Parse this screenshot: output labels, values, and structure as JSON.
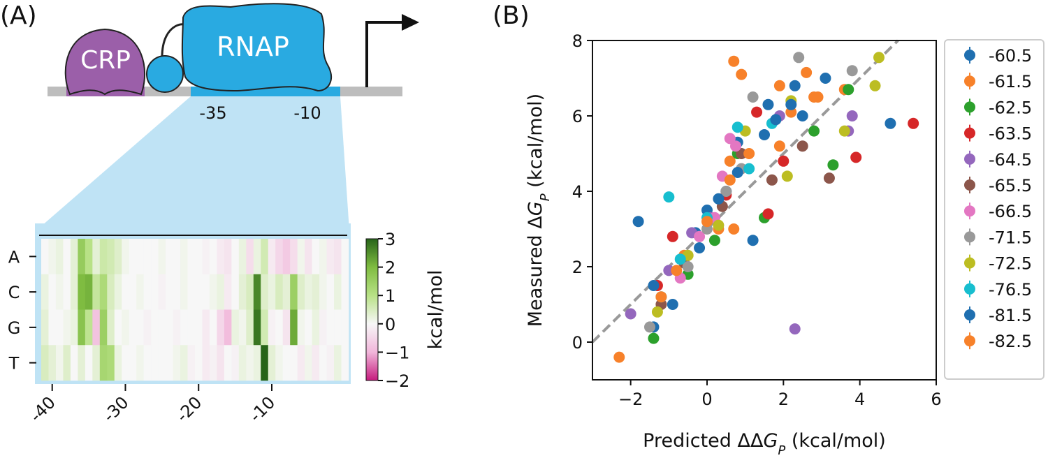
{
  "diagram": {
    "crp": "CRP",
    "rnap": "RNAP",
    "minus35": "-35",
    "minus10": "-10"
  },
  "chart_data": [
    {
      "type": "heatmap",
      "panel_label": "(A)",
      "rows": [
        "A",
        "C",
        "G",
        "T"
      ],
      "x": [
        -41,
        -40,
        -39,
        -38,
        -37,
        -36,
        -35,
        -34,
        -33,
        -32,
        -31,
        -30,
        -29,
        -28,
        -27,
        -26,
        -25,
        -24,
        -23,
        -22,
        -21,
        -20,
        -19,
        -18,
        -17,
        -16,
        -15,
        -14,
        -13,
        -12,
        -11,
        -10,
        -9,
        -8,
        -7,
        -6,
        -5,
        -4,
        -3,
        -2,
        -1,
        0
      ],
      "values": [
        [
          0,
          0.1,
          0.2,
          0,
          0.3,
          1.6,
          1.0,
          0.3,
          0.7,
          0.6,
          0.4,
          0.1,
          0,
          0,
          0,
          0,
          0.1,
          0,
          0,
          0.1,
          0,
          0,
          -0.1,
          0,
          -0.2,
          -0.3,
          0,
          0.2,
          -0.4,
          0.2,
          0.6,
          -0.2,
          -0.5,
          -0.7,
          -0.4,
          0.1,
          -0.3,
          0,
          0.1,
          -0.2,
          -0.3,
          0
        ],
        [
          0.2,
          0,
          0.1,
          0,
          0.3,
          2.0,
          2.1,
          0.8,
          1.2,
          0.5,
          0.2,
          0,
          0,
          0.1,
          0,
          0,
          -0.1,
          0,
          0,
          0.1,
          0,
          0,
          0,
          0.1,
          0.2,
          -0.2,
          0,
          0.3,
          0.5,
          2.6,
          0.4,
          0.2,
          0.5,
          0.3,
          1.5,
          0.4,
          0.2,
          0.3,
          0.1,
          0,
          0.2,
          0
        ],
        [
          0.3,
          0,
          0,
          0.1,
          0.2,
          1.8,
          0.9,
          -0.8,
          1.5,
          0.4,
          0,
          0.1,
          0,
          0,
          -0.1,
          0,
          0,
          0,
          -0.1,
          0,
          0,
          0,
          -0.2,
          0,
          -0.5,
          -0.9,
          0.2,
          0.1,
          0.4,
          2.8,
          0.6,
          -0.1,
          0,
          -0.3,
          2.2,
          0.1,
          0,
          0.2,
          -0.1,
          0,
          0,
          0
        ],
        [
          0.5,
          0.3,
          0.1,
          0.4,
          0,
          0.3,
          0,
          0.3,
          1.3,
          1.2,
          0.2,
          0,
          0,
          0.1,
          0,
          0,
          0,
          0,
          0.1,
          0.2,
          -0.1,
          0,
          -0.2,
          -0.1,
          -0.3,
          0,
          -0.1,
          0.2,
          0.1,
          0.2,
          3.0,
          0.3,
          0.1,
          0,
          0,
          -0.2,
          0.1,
          -0.2,
          0,
          -0.1,
          0.2,
          0
        ]
      ],
      "colormap": "PiYG",
      "xlim": [
        -41.5,
        0.5
      ],
      "xticks": [
        -40,
        -30,
        -20,
        -10
      ],
      "clim": [
        -2,
        3
      ],
      "cticks": [
        3,
        2,
        1,
        0,
        {
          "value": -1,
          "label": "−1"
        },
        {
          "value": -2,
          "label": "−2"
        }
      ],
      "colorbar_label": "kcal/mol"
    },
    {
      "type": "scatter",
      "panel_label": "(B)",
      "x_label": {
        "prefix": "Predicted ΔΔ",
        "var": "G",
        "sub": "P",
        "suffix": " (kcal/mol)"
      },
      "y_label": {
        "prefix": "Measured Δ",
        "var": "G",
        "sub": "P",
        "suffix": " (kcal/mol)"
      },
      "xlim": [
        -3,
        6
      ],
      "ylim": [
        -1,
        8
      ],
      "xticks": [
        {
          "value": -2,
          "label": "−2"
        },
        0,
        2,
        4,
        6
      ],
      "yticks": [
        0,
        2,
        4,
        6,
        8
      ],
      "identity_line": {
        "x": [
          -3,
          5
        ],
        "y": [
          0,
          8
        ],
        "color": "#999999"
      },
      "series": [
        {
          "name": "-60.5",
          "color": "#1f6fb0",
          "x": [
            -1.4,
            -0.3,
            0,
            0.5,
            1.2,
            2.3,
            3.1,
            4.8,
            0.8,
            1.6
          ],
          "y": [
            0.4,
            2.9,
            3.5,
            4.0,
            2.7,
            6.8,
            7.0,
            5.8,
            5.3,
            6.3
          ]
        },
        {
          "name": "-61.5",
          "color": "#f7812a",
          "x": [
            -2.3,
            -0.6,
            0.3,
            0.6,
            0.7,
            0.9,
            2.2,
            2.8,
            3.6,
            1.9
          ],
          "y": [
            -0.4,
            2.3,
            3.0,
            4.8,
            7.45,
            7.1,
            6.1,
            6.5,
            6.7,
            5.2
          ]
        },
        {
          "name": "-62.5",
          "color": "#2ca02c",
          "x": [
            -1.4,
            -0.5,
            0.2,
            1.5,
            3.3,
            3.7,
            2.8,
            0.8
          ],
          "y": [
            0.1,
            1.8,
            2.7,
            3.3,
            4.7,
            6.7,
            5.6,
            5.0
          ]
        },
        {
          "name": "-63.5",
          "color": "#d62728",
          "x": [
            -1.3,
            -0.9,
            0.5,
            1.6,
            2.0,
            3.9,
            5.4,
            1.3
          ],
          "y": [
            1.5,
            2.8,
            3.9,
            3.4,
            4.8,
            4.9,
            5.8,
            6.1
          ]
        },
        {
          "name": "-64.5",
          "color": "#9467bd",
          "x": [
            -2.0,
            -1.0,
            0.1,
            1.9,
            3.7,
            3.8,
            2.3,
            -0.4
          ],
          "y": [
            0.75,
            1.9,
            3.3,
            6.0,
            5.6,
            6.0,
            0.35,
            2.9
          ]
        },
        {
          "name": "-65.5",
          "color": "#8c564b",
          "x": [
            -1.2,
            -0.6,
            0.4,
            1.7,
            2.5,
            3.2,
            0.9
          ],
          "y": [
            1.0,
            2.1,
            3.6,
            4.3,
            5.2,
            4.35,
            5.0
          ]
        },
        {
          "name": "-66.5",
          "color": "#e377c2",
          "x": [
            -0.7,
            0.2,
            0.6,
            0.75,
            0.4,
            -0.2
          ],
          "y": [
            1.7,
            3.3,
            5.4,
            5.2,
            4.4,
            2.8
          ]
        },
        {
          "name": "-71.5",
          "color": "#999999",
          "x": [
            -1.5,
            -0.5,
            0.0,
            0.5,
            1.2,
            2.4,
            3.8,
            0.9
          ],
          "y": [
            0.4,
            2.0,
            3.0,
            4.0,
            6.5,
            7.55,
            7.2,
            4.6
          ]
        },
        {
          "name": "-72.5",
          "color": "#bcbd22",
          "x": [
            -1.3,
            -0.5,
            0.3,
            2.1,
            2.2,
            3.6,
            4.5,
            4.4,
            1.0
          ],
          "y": [
            0.8,
            2.3,
            3.1,
            4.4,
            6.4,
            5.6,
            7.55,
            6.8,
            5.6
          ]
        },
        {
          "name": "-76.5",
          "color": "#17becf",
          "x": [
            -1.0,
            -0.7,
            0,
            1.1,
            1.7,
            0.8,
            -1.2
          ],
          "y": [
            3.85,
            2.2,
            3.3,
            4.6,
            5.8,
            5.7,
            1.2
          ]
        },
        {
          "name": "-81.5",
          "color": "#1f6fb0",
          "x": [
            -1.8,
            -1.4,
            -0.9,
            -0.2,
            0.3,
            0.8,
            1.5,
            2.2,
            2.5,
            1.8
          ],
          "y": [
            3.2,
            1.5,
            1.0,
            2.5,
            3.8,
            4.5,
            5.5,
            6.3,
            6.0,
            5.9
          ]
        },
        {
          "name": "-82.5",
          "color": "#f7812a",
          "x": [
            -1.2,
            -0.8,
            0,
            0.6,
            1.1,
            1.9,
            2.6,
            2.9,
            0.7
          ],
          "y": [
            1.2,
            1.9,
            3.2,
            4.3,
            5.0,
            6.8,
            7.15,
            6.5,
            3.0
          ]
        }
      ]
    }
  ]
}
